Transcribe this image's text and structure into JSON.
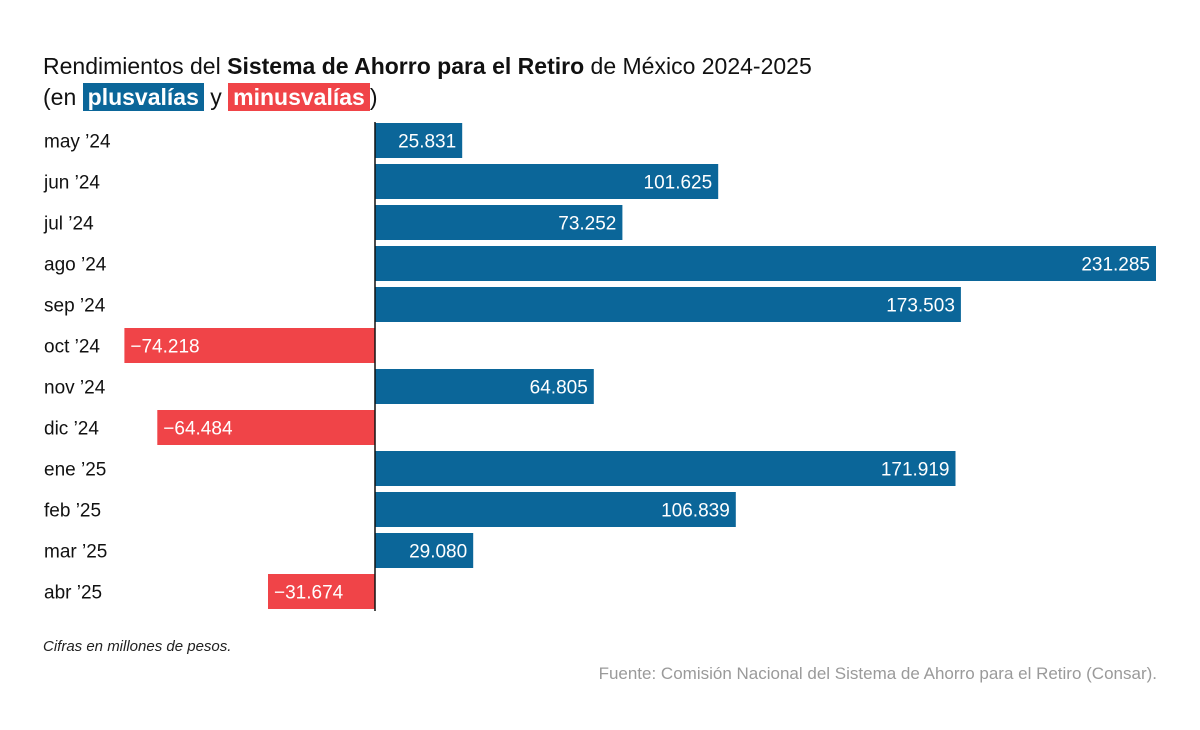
{
  "header": {
    "title_pre": "Rendimientos del ",
    "title_bold": "Sistema de Ahorro para el Retiro",
    "title_post": " de México 2024-2025",
    "sub_open": "(en ",
    "sub_pos": "plusvalías",
    "sub_mid": " y ",
    "sub_neg": "minusvalías",
    "sub_close": ")"
  },
  "colors": {
    "positive": "#0b6699",
    "negative": "#f04448",
    "axis": "#111111"
  },
  "chart_data": {
    "type": "bar",
    "orientation": "horizontal",
    "categories": [
      "may ’24",
      "jun ’24",
      "jul ’24",
      "ago ’24",
      "sep ’24",
      "oct ’24",
      "nov ’24",
      "dic ’24",
      "ene ’25",
      "feb ’25",
      "mar ’25",
      "abr ’25"
    ],
    "values": [
      25831,
      101625,
      73252,
      231285,
      173503,
      -74218,
      64805,
      -64484,
      171919,
      106839,
      29080,
      -31674
    ],
    "value_labels": [
      "25.831",
      "101.625",
      "73.252",
      "231.285",
      "173.503",
      "−74.218",
      "64.805",
      "−64.484",
      "171.919",
      "106.839",
      "29.080",
      "−31.674"
    ],
    "xlim": [
      -74218,
      231285
    ],
    "title": "Rendimientos del Sistema de Ahorro para el Retiro de México 2024-2025",
    "subtitle": "(en plusvalías y minusvalías)",
    "xlabel": "",
    "ylabel": ""
  },
  "footer": {
    "note": "Cifras en millones de pesos.",
    "source": "Fuente: Comisión Nacional del Sistema de Ahorro para el Retiro (Consar)."
  }
}
